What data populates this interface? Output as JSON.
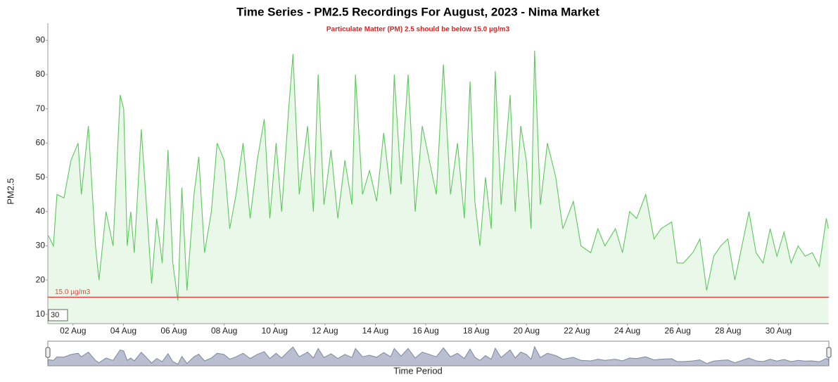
{
  "chart_data": {
    "type": "line",
    "title": "Time Series - PM2.5 Recordings For August, 2023 - Nima Market",
    "subtitle": "Particulate Matter (PM) 2.5 should be below 15.0 µg/m3",
    "ylabel": "PM2.5",
    "xlabel": "Time Period",
    "color": "#5cc85c",
    "fill_color": "#e9f8e9",
    "threshold": {
      "value": 15,
      "label": "15.0 µg/m3",
      "color": "#e8463a"
    },
    "roll_period": 30,
    "xlim": [
      1,
      32
    ],
    "ylim": [
      7.3,
      95
    ],
    "yticks": [
      10,
      20,
      30,
      40,
      50,
      60,
      70,
      80,
      90
    ],
    "xticks": [
      {
        "value": 2,
        "label": "02 Aug"
      },
      {
        "value": 4,
        "label": "04 Aug"
      },
      {
        "value": 6,
        "label": "06 Aug"
      },
      {
        "value": 8,
        "label": "08 Aug"
      },
      {
        "value": 10,
        "label": "10 Aug"
      },
      {
        "value": 12,
        "label": "12 Aug"
      },
      {
        "value": 14,
        "label": "14 Aug"
      },
      {
        "value": 16,
        "label": "16 Aug"
      },
      {
        "value": 18,
        "label": "18 Aug"
      },
      {
        "value": 20,
        "label": "20 Aug"
      },
      {
        "value": 22,
        "label": "22 Aug"
      },
      {
        "value": 24,
        "label": "24 Aug"
      },
      {
        "value": 26,
        "label": "26 Aug"
      },
      {
        "value": 28,
        "label": "28 Aug"
      },
      {
        "value": 30,
        "label": "30 Aug"
      }
    ],
    "x": [
      1.02,
      1.22,
      1.36,
      1.64,
      1.92,
      2.2,
      2.33,
      2.61,
      2.89,
      3.03,
      3.31,
      3.59,
      3.87,
      4.01,
      4.15,
      4.29,
      4.43,
      4.71,
      4.84,
      5.12,
      5.32,
      5.54,
      5.77,
      5.96,
      6.16,
      6.32,
      6.52,
      6.8,
      6.99,
      7.22,
      7.49,
      7.72,
      8,
      8.22,
      8.47,
      8.75,
      9.03,
      9.31,
      9.59,
      9.81,
      10.06,
      10.28,
      10.56,
      10.73,
      10.98,
      11.31,
      11.54,
      11.73,
      11.96,
      12.24,
      12.51,
      12.79,
      13.07,
      13.21,
      13.49,
      13.77,
      14.05,
      14.33,
      14.61,
      14.75,
      15.02,
      15.3,
      15.58,
      15.86,
      16.14,
      16.42,
      16.7,
      16.98,
      17.26,
      17.53,
      17.76,
      17.95,
      18.15,
      18.37,
      18.6,
      18.76,
      18.99,
      19.35,
      19.55,
      19.77,
      19.99,
      20.18,
      20.32,
      20.55,
      20.83,
      21.16,
      21.44,
      21.86,
      22.16,
      22.55,
      22.83,
      23.11,
      23.53,
      23.81,
      24.09,
      24.37,
      24.73,
      25.06,
      25.34,
      25.76,
      25.98,
      26.23,
      26.6,
      26.88,
      27.15,
      27.43,
      27.71,
      27.99,
      28.27,
      28.55,
      28.83,
      29.11,
      29.39,
      29.67,
      29.94,
      30.22,
      30.5,
      30.78,
      31.06,
      31.34,
      31.62,
      31.9,
      31.98
    ],
    "values": [
      33,
      30,
      45,
      44,
      55,
      60,
      45,
      65,
      30,
      20,
      40,
      30,
      74,
      70,
      30,
      40,
      28,
      64,
      50,
      19,
      38,
      25,
      58,
      25,
      14,
      47,
      17,
      45,
      56,
      28,
      40,
      60,
      55,
      35,
      45,
      60,
      38,
      55,
      67,
      38,
      60,
      40,
      70,
      86,
      45,
      65,
      40,
      80,
      42,
      58,
      38,
      55,
      42,
      80,
      45,
      52,
      43,
      63,
      45,
      80,
      48,
      80,
      40,
      65,
      55,
      45,
      83,
      45,
      60,
      38,
      78,
      43,
      30,
      50,
      35,
      81,
      42,
      74,
      40,
      65,
      55,
      35,
      87,
      42,
      60,
      50,
      35,
      43,
      30,
      28,
      35,
      30,
      35,
      28,
      40,
      38,
      45,
      32,
      35,
      37,
      25,
      25,
      28,
      32,
      17,
      27,
      30,
      32,
      20,
      30,
      40,
      28,
      25,
      35,
      27,
      34,
      25,
      30,
      27,
      28,
      24,
      38,
      35
    ]
  }
}
